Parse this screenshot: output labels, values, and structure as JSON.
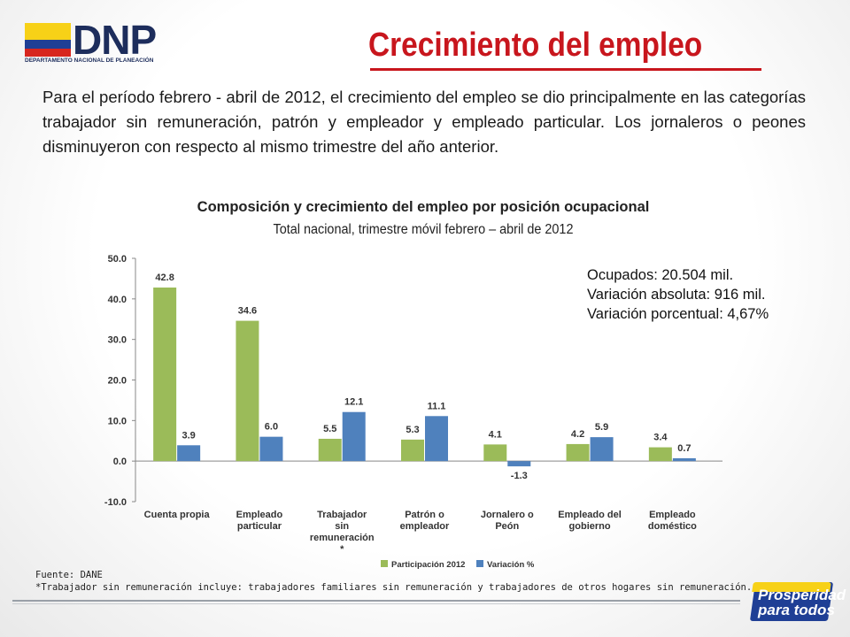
{
  "header": {
    "logo_text": "DNP",
    "logo_subtitle": "DEPARTAMENTO NACIONAL DE PLANEACIÓN",
    "title": "Crecimiento del empleo"
  },
  "intro_text": "Para el período febrero - abril de 2012, el crecimiento del empleo se dio principalmente en las categorías trabajador sin remuneración, patrón y empleador y empleado particular. Los jornaleros o peones disminuyeron con respecto al mismo trimestre del año anterior.",
  "info": {
    "line1": "Ocupados:  20.504 mil.",
    "line2": "Variación absoluta: 916 mil.",
    "line3": "Variación porcentual: 4,67%"
  },
  "footer": {
    "source": "Fuente: DANE",
    "note": "*Trabajador sin remuneración incluye: trabajadores familiares sin remuneración y trabajadores de otros  hogares sin remuneración.",
    "badge": "Prosperidad para todos"
  },
  "colors": {
    "participation": "#9bbb59",
    "variation": "#4f81bd",
    "title": "#c8161d",
    "brand_blue": "#1f3f95",
    "brand_yellow": "#f7d117"
  },
  "chart_data": {
    "type": "bar",
    "title": "Composición y crecimiento del empleo por posición ocupacional",
    "subtitle": "Total nacional, trimestre móvil febrero – abril de 2012",
    "categories": [
      [
        "Cuenta propia"
      ],
      [
        "Empleado",
        "particular"
      ],
      [
        "Trabajador",
        "sin",
        "remuneración",
        "*"
      ],
      [
        "Patrón o",
        "empleador"
      ],
      [
        "Jornalero o",
        "Peón"
      ],
      [
        "Empleado del",
        "gobierno"
      ],
      [
        "Empleado",
        "doméstico"
      ]
    ],
    "series": [
      {
        "name": "Participación 2012",
        "values": [
          42.8,
          34.6,
          5.5,
          5.3,
          4.1,
          4.2,
          3.4
        ],
        "labels": [
          "42.8",
          "34.6",
          "5.5",
          "5.3",
          "4.1",
          "4.2",
          "3.4"
        ]
      },
      {
        "name": "Variación %",
        "values": [
          3.9,
          6.0,
          12.1,
          11.1,
          -1.3,
          5.9,
          0.7
        ],
        "labels": [
          "3.9",
          "6.0",
          "12.1",
          "11.1",
          "-1.3",
          "5.9",
          "0.7"
        ]
      }
    ],
    "ylim": [
      -10,
      50
    ],
    "yticks": [
      "-10.0",
      "0.0",
      "10.0",
      "20.0",
      "30.0",
      "40.0",
      "50.0"
    ],
    "ytick_values": [
      -10,
      0,
      10,
      20,
      30,
      40,
      50
    ],
    "grid": false,
    "legend_position": "bottom"
  }
}
